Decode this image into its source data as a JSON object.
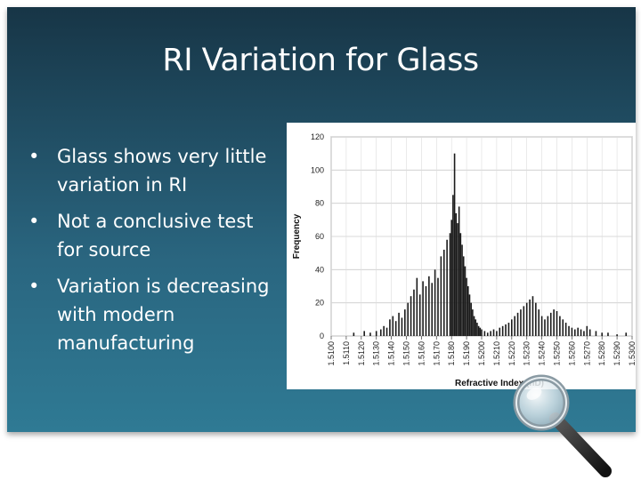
{
  "slide": {
    "title": "RI Variation for Glass",
    "bullets": [
      "Glass shows very little variation in RI",
      "Not a conclusive test for source",
      "Variation is decreasing with modern manufacturing"
    ]
  },
  "colors": {
    "bar": "#1a1a1a",
    "background_top": "#173546",
    "background_bottom": "#2f7a94"
  },
  "icons": [
    "magnifying-glass-icon"
  ],
  "chart_data": {
    "type": "bar",
    "xlabel": "Refractive Index (nD)",
    "ylabel": "Frequency",
    "ylim": [
      0,
      120
    ],
    "xlim": [
      1.51,
      1.53
    ],
    "yticks": [
      "0",
      "20",
      "40",
      "60",
      "80",
      "100",
      "120"
    ],
    "xticks": [
      "1.5100",
      "1.5110",
      "1.5120",
      "1.5130",
      "1.5140",
      "1.5150",
      "1.5160",
      "1.5170",
      "1.5180",
      "1.5190",
      "1.5200",
      "1.5210",
      "1.5220",
      "1.5230",
      "1.5240",
      "1.5250",
      "1.5260",
      "1.5270",
      "1.5280",
      "1.5290",
      "1.5300"
    ],
    "grid": true,
    "x": [
      1.5115,
      1.5122,
      1.5126,
      1.513,
      1.5133,
      1.5135,
      1.5137,
      1.5139,
      1.5141,
      1.5143,
      1.5145,
      1.5147,
      1.5149,
      1.5151,
      1.5153,
      1.5155,
      1.5157,
      1.5159,
      1.5161,
      1.5163,
      1.5165,
      1.5167,
      1.5169,
      1.5171,
      1.5173,
      1.5175,
      1.5177,
      1.5179,
      1.518,
      1.5181,
      1.5182,
      1.5183,
      1.5184,
      1.5185,
      1.5186,
      1.5187,
      1.5188,
      1.5189,
      1.519,
      1.5191,
      1.5192,
      1.5193,
      1.5194,
      1.5195,
      1.5196,
      1.5197,
      1.5198,
      1.5199,
      1.52,
      1.5202,
      1.5204,
      1.5206,
      1.5208,
      1.521,
      1.5212,
      1.5214,
      1.5216,
      1.5218,
      1.522,
      1.5222,
      1.5224,
      1.5226,
      1.5228,
      1.523,
      1.5232,
      1.5234,
      1.5236,
      1.5238,
      1.524,
      1.5242,
      1.5244,
      1.5246,
      1.5248,
      1.525,
      1.5252,
      1.5254,
      1.5256,
      1.5258,
      1.526,
      1.5262,
      1.5264,
      1.5266,
      1.5268,
      1.527,
      1.5272,
      1.5276,
      1.528,
      1.5284,
      1.529,
      1.5296
    ],
    "values": [
      2,
      3,
      2,
      3,
      4,
      6,
      5,
      10,
      12,
      9,
      14,
      11,
      16,
      20,
      24,
      28,
      35,
      25,
      33,
      30,
      36,
      32,
      40,
      35,
      48,
      52,
      58,
      62,
      70,
      85,
      110,
      74,
      68,
      78,
      62,
      55,
      48,
      42,
      35,
      30,
      25,
      20,
      16,
      12,
      10,
      8,
      6,
      5,
      4,
      3,
      2,
      3,
      4,
      3,
      5,
      6,
      7,
      8,
      10,
      12,
      14,
      16,
      18,
      20,
      22,
      24,
      20,
      16,
      12,
      10,
      12,
      14,
      16,
      15,
      12,
      10,
      8,
      6,
      5,
      4,
      5,
      4,
      3,
      6,
      4,
      3,
      2,
      2,
      1,
      2
    ]
  }
}
